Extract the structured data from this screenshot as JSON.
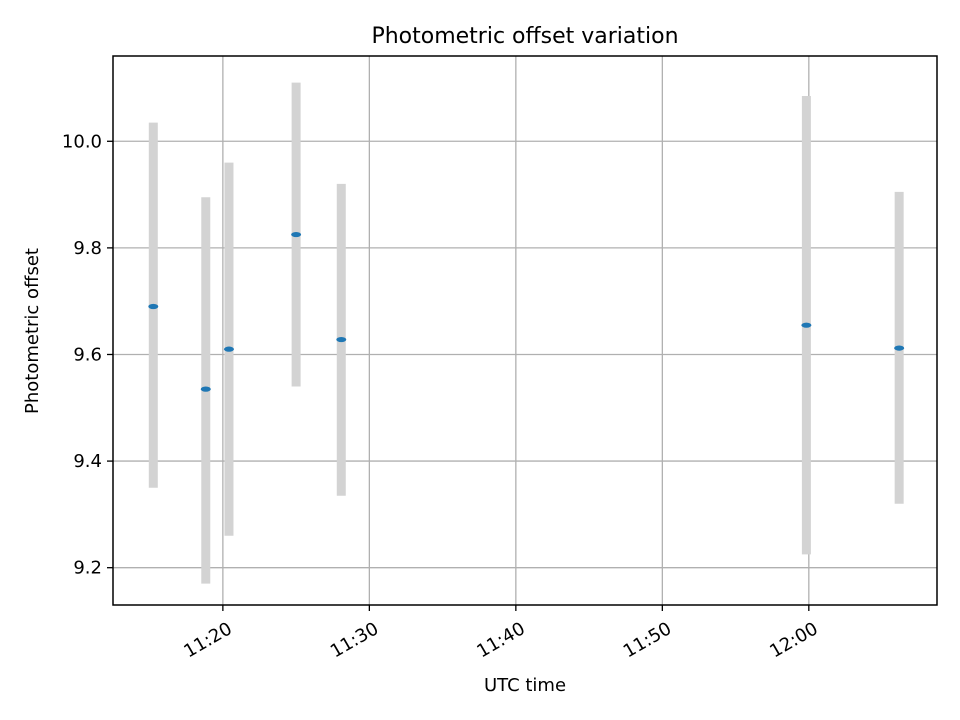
{
  "chart_data": {
    "type": "scatter",
    "title": "Photometric offset variation",
    "xlabel": "UTC time",
    "ylabel": "Photometric offset",
    "x_axis_format": "HH:MM",
    "xlim": [
      "11:12:30",
      "12:08:45"
    ],
    "ylim": [
      9.13,
      10.16
    ],
    "x_ticks": [
      "11:20",
      "11:30",
      "11:40",
      "11:50",
      "12:00"
    ],
    "y_ticks": [
      9.2,
      9.4,
      9.6,
      9.8,
      10.0
    ],
    "grid": true,
    "legend": "none",
    "series": [
      {
        "x": [
          "11:15:15",
          "11:18:50",
          "11:20:25",
          "11:25:00",
          "11:28:05",
          "11:59:50",
          "12:06:10"
        ],
        "y": [
          9.69,
          9.535,
          9.61,
          9.825,
          9.628,
          9.655,
          9.612
        ],
        "yerr_low": [
          9.35,
          9.17,
          9.26,
          9.54,
          9.335,
          9.225,
          9.32
        ],
        "yerr_high": [
          10.035,
          9.895,
          9.96,
          10.11,
          9.92,
          10.085,
          9.905
        ]
      }
    ],
    "colors": {
      "marker": "#1f77b4",
      "errorbar": "#d3d3d3",
      "grid": "#b0b0b0"
    }
  }
}
